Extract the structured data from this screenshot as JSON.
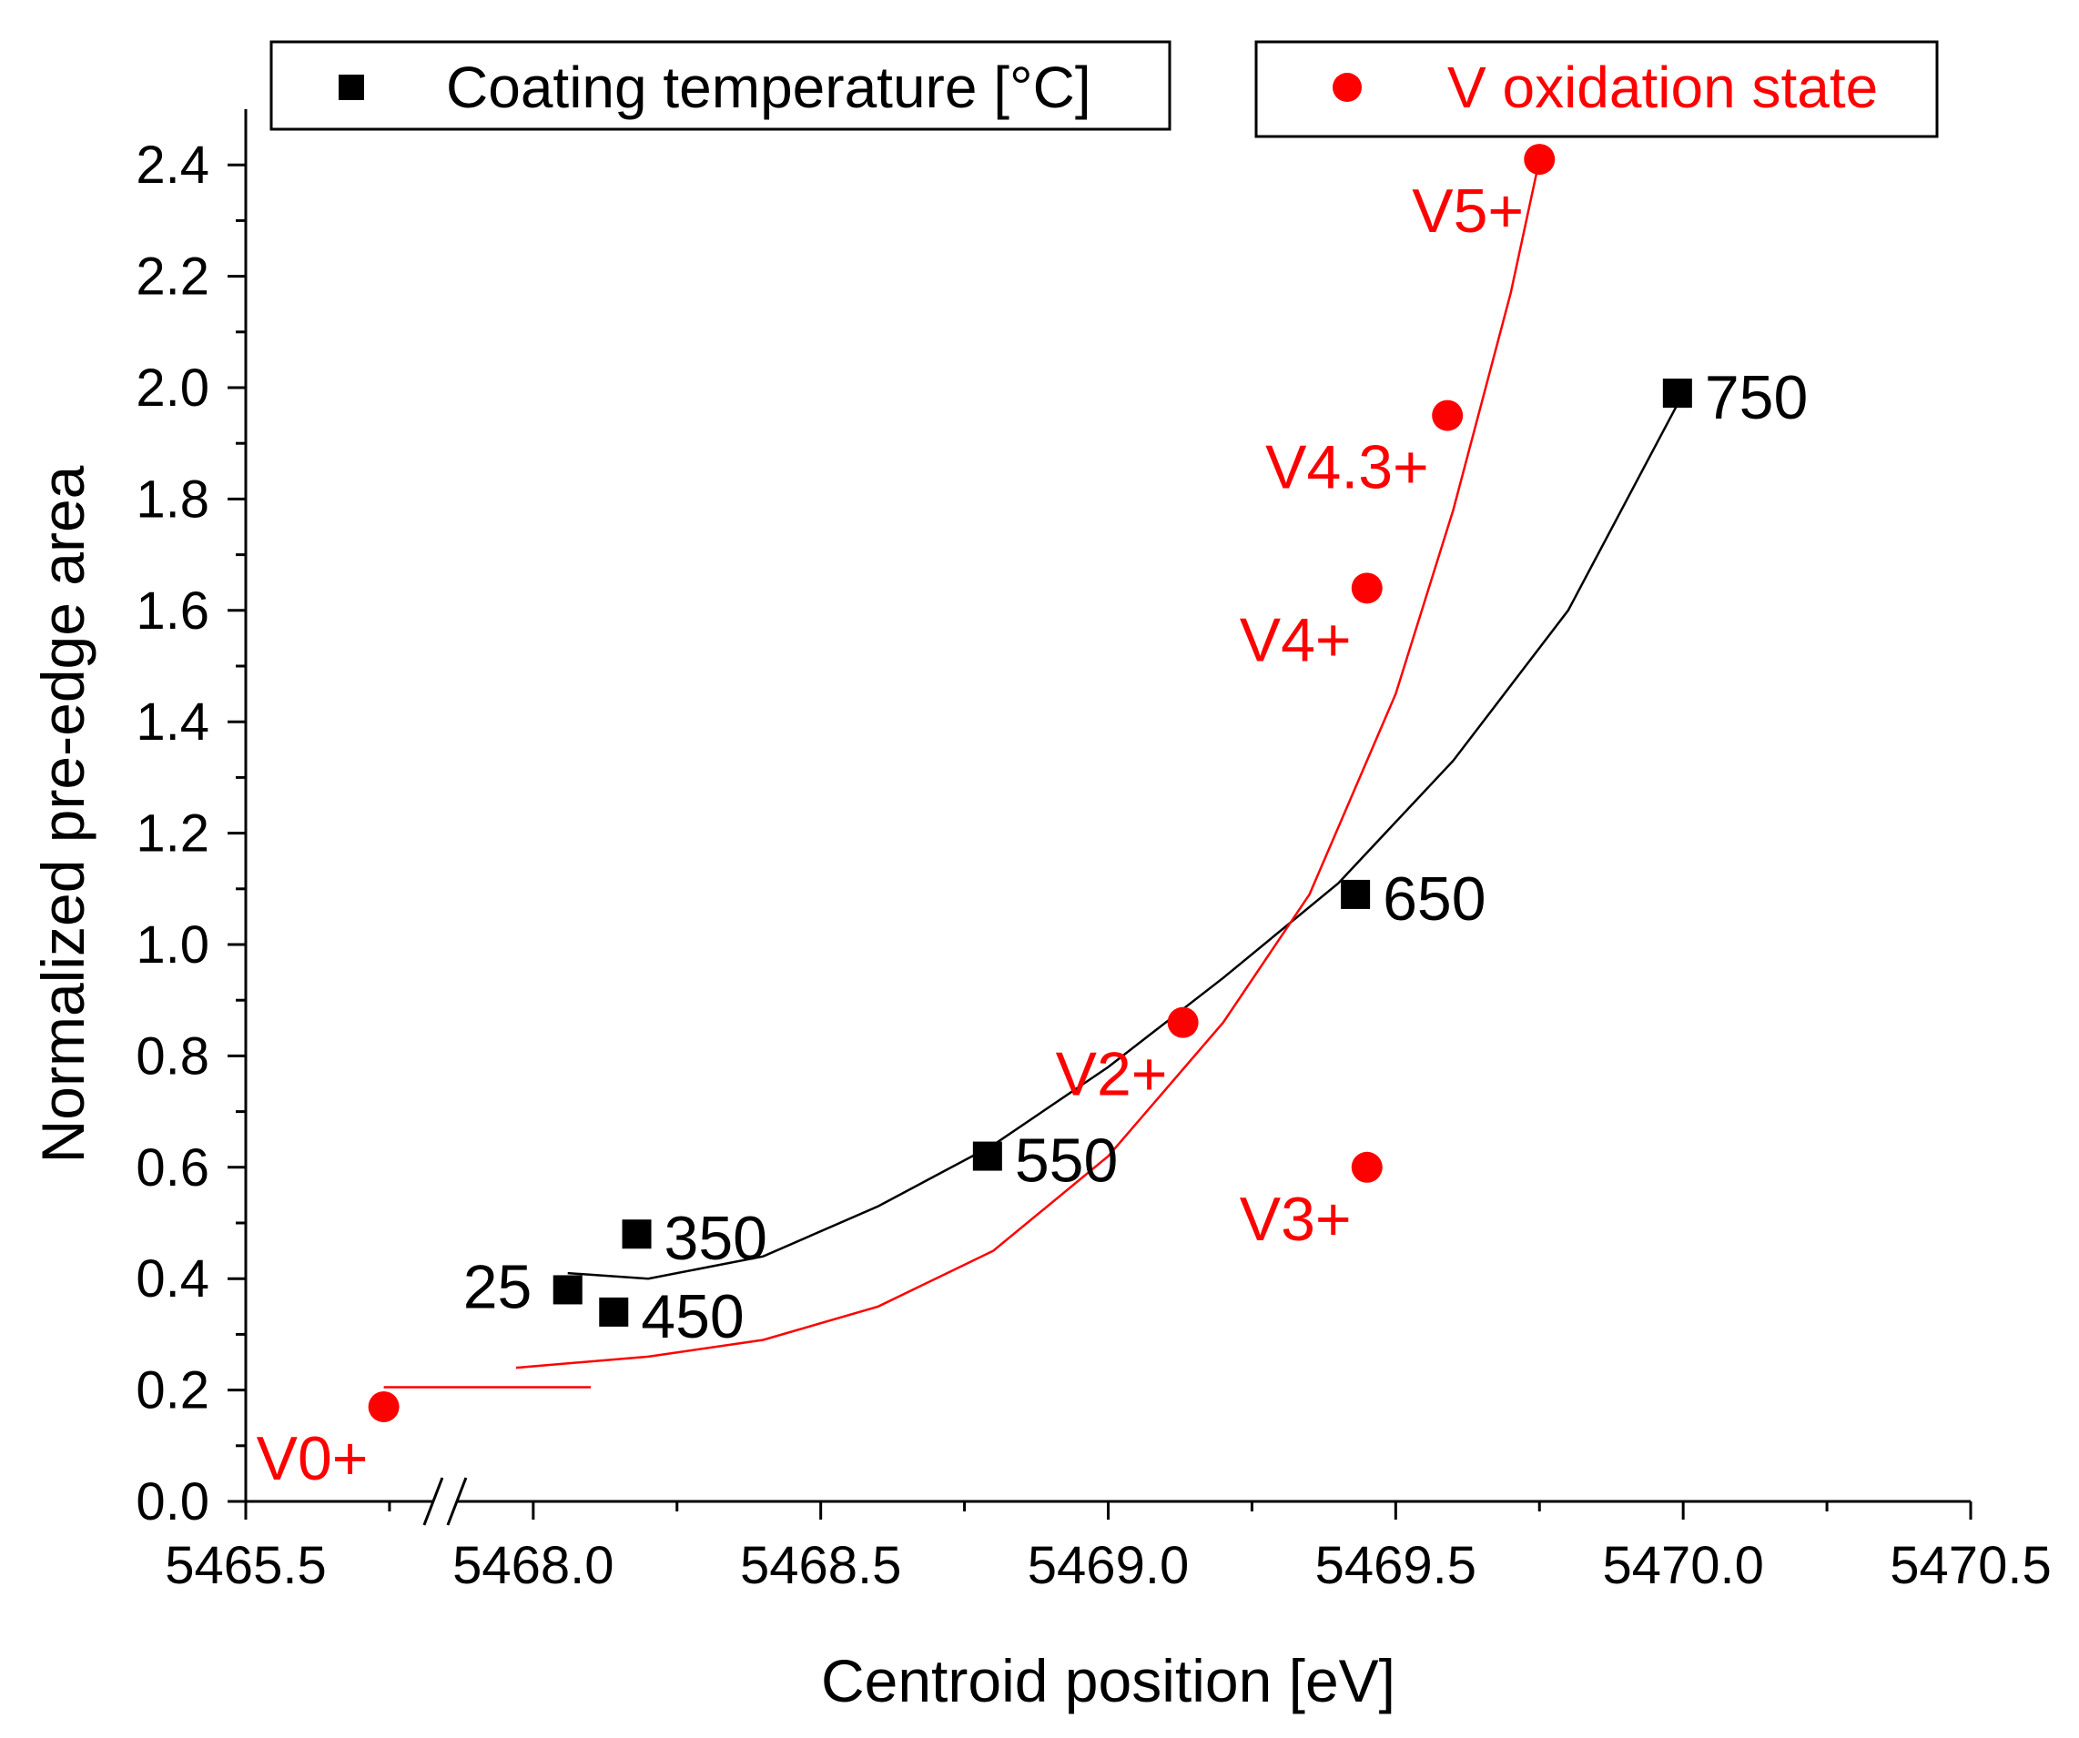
{
  "chart_data": {
    "type": "scatter",
    "xlabel": "Centroid position [eV]",
    "ylabel": "Normalized pre-edge area",
    "xlim": [
      5467.5,
      5470.5
    ],
    "ylim": [
      0.0,
      2.5
    ],
    "x_axis_break": {
      "display_lower_label": "5465.5",
      "break_between": [
        5465.5,
        5467.5
      ]
    },
    "x_ticks": [
      {
        "value": 5467.5,
        "label": "5465.5"
      },
      {
        "value": 5468.0,
        "label": "5468.0"
      },
      {
        "value": 5468.5,
        "label": "5468.5"
      },
      {
        "value": 5469.0,
        "label": "5469.0"
      },
      {
        "value": 5469.5,
        "label": "5469.5"
      },
      {
        "value": 5470.0,
        "label": "5470.0"
      },
      {
        "value": 5470.5,
        "label": "5470.5"
      }
    ],
    "y_ticks": [
      {
        "value": 0.0,
        "label": "0.0"
      },
      {
        "value": 0.2,
        "label": "0.2"
      },
      {
        "value": 0.4,
        "label": "0.4"
      },
      {
        "value": 0.6,
        "label": "0.6"
      },
      {
        "value": 0.8,
        "label": "0.8"
      },
      {
        "value": 1.0,
        "label": "1.0"
      },
      {
        "value": 1.2,
        "label": "1.2"
      },
      {
        "value": 1.4,
        "label": "1.4"
      },
      {
        "value": 1.6,
        "label": "1.6"
      },
      {
        "value": 1.8,
        "label": "1.8"
      },
      {
        "value": 2.0,
        "label": "2.0"
      },
      {
        "value": 2.2,
        "label": "2.2"
      },
      {
        "value": 2.4,
        "label": "2.4"
      }
    ],
    "grid": false,
    "legend_placement": "top",
    "series": [
      {
        "name": "Coating temperature [°C]",
        "marker": "square",
        "color": "#000000",
        "points": [
          {
            "x": 5468.06,
            "y": 0.38,
            "label": "25"
          },
          {
            "x": 5468.18,
            "y": 0.48,
            "label": "350"
          },
          {
            "x": 5468.14,
            "y": 0.34,
            "label": "450"
          },
          {
            "x": 5468.79,
            "y": 0.62,
            "label": "550"
          },
          {
            "x": 5469.43,
            "y": 1.09,
            "label": "650"
          },
          {
            "x": 5469.99,
            "y": 1.99,
            "label": "750"
          }
        ],
        "fit_curve": [
          {
            "x": 5468.06,
            "y": 0.41
          },
          {
            "x": 5468.2,
            "y": 0.4
          },
          {
            "x": 5468.4,
            "y": 0.44
          },
          {
            "x": 5468.6,
            "y": 0.53
          },
          {
            "x": 5468.8,
            "y": 0.64
          },
          {
            "x": 5469.0,
            "y": 0.78
          },
          {
            "x": 5469.2,
            "y": 0.94
          },
          {
            "x": 5469.4,
            "y": 1.11
          },
          {
            "x": 5469.6,
            "y": 1.33
          },
          {
            "x": 5469.8,
            "y": 1.6
          },
          {
            "x": 5469.99,
            "y": 1.97
          }
        ]
      },
      {
        "name": "V oxidation state",
        "marker": "circle",
        "color": "#ff0000",
        "points": [
          {
            "x": 5467.74,
            "y": 0.17,
            "label": "V0+"
          },
          {
            "x": 5469.13,
            "y": 0.86,
            "label": "V2+"
          },
          {
            "x": 5469.45,
            "y": 0.6,
            "label": "V3+"
          },
          {
            "x": 5469.45,
            "y": 1.64,
            "label": "V4+"
          },
          {
            "x": 5469.59,
            "y": 1.95,
            "label": "V4.3+"
          },
          {
            "x": 5469.75,
            "y": 2.41,
            "label": "V5+"
          }
        ],
        "fit_curve_segments": [
          [
            {
              "x": 5467.74,
              "y": 0.205
            },
            {
              "x": 5467.82,
              "y": 0.205
            },
            {
              "x": 5467.9,
              "y": 0.205
            },
            {
              "x": 5468.1,
              "y": 0.205
            }
          ],
          [
            {
              "x": 5467.97,
              "y": 0.24
            },
            {
              "x": 5468.2,
              "y": 0.26
            },
            {
              "x": 5468.4,
              "y": 0.29
            },
            {
              "x": 5468.6,
              "y": 0.35
            },
            {
              "x": 5468.8,
              "y": 0.45
            },
            {
              "x": 5469.0,
              "y": 0.62
            },
            {
              "x": 5469.2,
              "y": 0.86
            },
            {
              "x": 5469.35,
              "y": 1.09
            },
            {
              "x": 5469.5,
              "y": 1.45
            },
            {
              "x": 5469.6,
              "y": 1.78
            },
            {
              "x": 5469.7,
              "y": 2.17
            },
            {
              "x": 5469.75,
              "y": 2.41
            }
          ]
        ]
      }
    ]
  }
}
